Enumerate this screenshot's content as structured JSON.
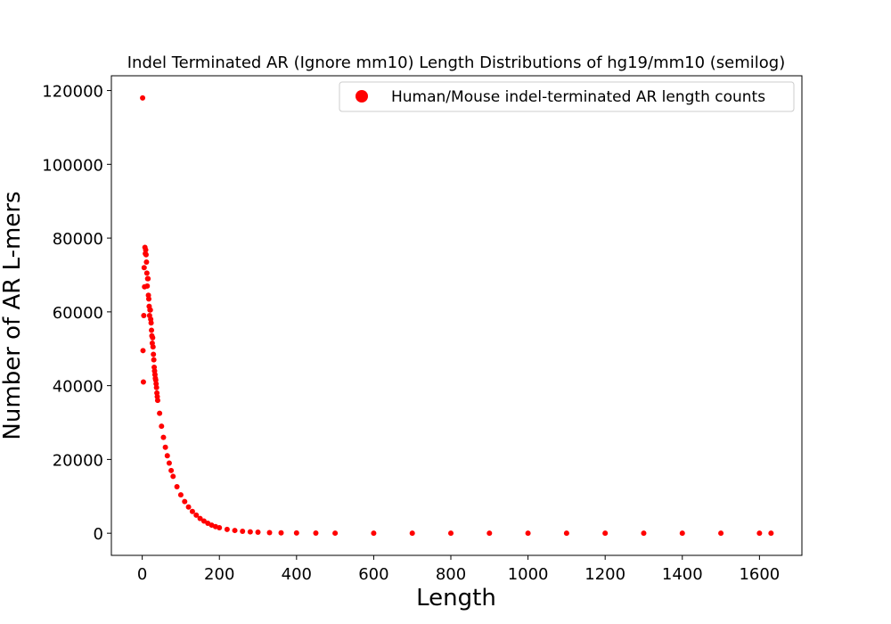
{
  "chart_data": {
    "type": "scatter",
    "title": "Indel Terminated AR (Ignore mm10) Length Distributions of hg19/mm10 (semilog)",
    "xlabel": "Length",
    "ylabel": "Number of AR L-mers",
    "xlim": [
      -80,
      1710
    ],
    "ylim": [
      -6000,
      124000
    ],
    "xticks": [
      0,
      200,
      400,
      600,
      800,
      1000,
      1200,
      1400,
      1600
    ],
    "yticks": [
      0,
      20000,
      40000,
      60000,
      80000,
      100000,
      120000
    ],
    "xtick_labels": [
      "0",
      "200",
      "400",
      "600",
      "800",
      "1000",
      "1200",
      "1400",
      "1600"
    ],
    "ytick_labels": [
      "0",
      "20000",
      "40000",
      "60000",
      "80000",
      "100000",
      "120000"
    ],
    "grid": false,
    "legend_position": "top-right",
    "series": [
      {
        "name": "Human/Mouse indel-terminated AR length counts",
        "color": "#ff0000",
        "marker": "circle",
        "points": [
          [
            1,
            118000
          ],
          [
            2,
            49500
          ],
          [
            3,
            41000
          ],
          [
            4,
            59000
          ],
          [
            5,
            72000
          ],
          [
            6,
            66800
          ],
          [
            7,
            77500
          ],
          [
            8,
            75800
          ],
          [
            9,
            76800
          ],
          [
            10,
            75500
          ],
          [
            11,
            73500
          ],
          [
            12,
            70500
          ],
          [
            13,
            67000
          ],
          [
            14,
            69000
          ],
          [
            15,
            69000
          ],
          [
            16,
            64500
          ],
          [
            17,
            63500
          ],
          [
            18,
            61500
          ],
          [
            19,
            59000
          ],
          [
            20,
            60500
          ],
          [
            21,
            60500
          ],
          [
            22,
            58000
          ],
          [
            23,
            57000
          ],
          [
            24,
            55000
          ],
          [
            25,
            53500
          ],
          [
            26,
            51500
          ],
          [
            27,
            53000
          ],
          [
            28,
            50500
          ],
          [
            29,
            48500
          ],
          [
            30,
            47000
          ],
          [
            31,
            45000
          ],
          [
            32,
            44000
          ],
          [
            33,
            43000
          ],
          [
            34,
            42000
          ],
          [
            35,
            41500
          ],
          [
            36,
            40500
          ],
          [
            37,
            39500
          ],
          [
            38,
            38000
          ],
          [
            39,
            37000
          ],
          [
            40,
            36000
          ],
          [
            45,
            32500
          ],
          [
            50,
            29000
          ],
          [
            55,
            26000
          ],
          [
            60,
            23300
          ],
          [
            65,
            21000
          ],
          [
            70,
            19000
          ],
          [
            75,
            17000
          ],
          [
            80,
            15400
          ],
          [
            90,
            12600
          ],
          [
            100,
            10400
          ],
          [
            110,
            8600
          ],
          [
            120,
            7100
          ],
          [
            130,
            5900
          ],
          [
            140,
            4900
          ],
          [
            150,
            4000
          ],
          [
            160,
            3300
          ],
          [
            170,
            2700
          ],
          [
            180,
            2200
          ],
          [
            190,
            1800
          ],
          [
            200,
            1500
          ],
          [
            220,
            1050
          ],
          [
            240,
            750
          ],
          [
            260,
            520
          ],
          [
            280,
            380
          ],
          [
            300,
            270
          ],
          [
            330,
            170
          ],
          [
            360,
            110
          ],
          [
            400,
            70
          ],
          [
            450,
            40
          ],
          [
            500,
            25
          ],
          [
            600,
            12
          ],
          [
            700,
            6
          ],
          [
            800,
            4
          ],
          [
            900,
            3
          ],
          [
            1000,
            2
          ],
          [
            1100,
            1
          ],
          [
            1200,
            1
          ],
          [
            1300,
            1
          ],
          [
            1400,
            1
          ],
          [
            1500,
            1
          ],
          [
            1600,
            1
          ],
          [
            1630,
            1
          ]
        ]
      }
    ]
  }
}
